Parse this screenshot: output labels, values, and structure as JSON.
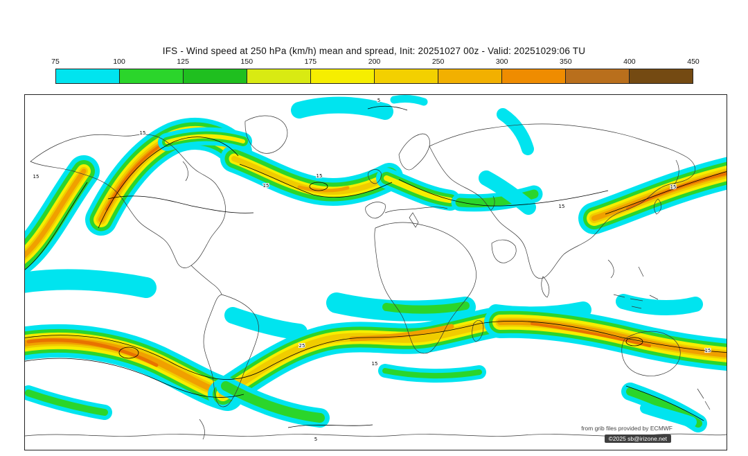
{
  "title": "IFS - Wind speed at 250 hPa (km/h) mean and spread, Init: 20251027 00z - Valid: 20251029:06 TU",
  "colorbar": {
    "ticks": [
      "75",
      "100",
      "125",
      "150",
      "175",
      "200",
      "250",
      "300",
      "350",
      "400",
      "450"
    ],
    "colors": [
      "#00e4ef",
      "#2bd52b",
      "#1fbf1f",
      "#d9ea12",
      "#f6ee00",
      "#f3d000",
      "#f2b000",
      "#ef8c00",
      "#b96f1c",
      "#744a12"
    ]
  },
  "map": {
    "palette": {
      "cyan": "#00e4ef",
      "green": "#2bd52b",
      "yellow": "#f6ee00",
      "gold": "#f0cc00",
      "orange": "#f0a000",
      "core": "#e87200"
    },
    "contour_labels": [
      "15",
      "15",
      "5",
      "15",
      "15",
      "15",
      "15",
      "25",
      "15",
      "15",
      "5"
    ],
    "attribution": {
      "line1": "from grib files provided by ECMWF",
      "line2": "©2025 sb@irizone.net"
    }
  },
  "chart_data": {
    "type": "heatmap",
    "title": "IFS - Wind speed at 250 hPa (km/h) mean and spread, Init: 20251027 00z - Valid: 20251029:06 TU",
    "variable": "250 hPa wind speed ensemble mean (shaded, km/h) with ensemble spread (black contours)",
    "projection": "global equirectangular world map",
    "colorbar_levels": [
      75,
      100,
      125,
      150,
      175,
      200,
      250,
      300,
      350,
      400,
      450
    ],
    "colorbar_colors": [
      "#00e4ef",
      "#2bd52b",
      "#1fbf1f",
      "#d9ea12",
      "#f6ee00",
      "#f3d000",
      "#f2b000",
      "#ef8c00",
      "#b96f1c",
      "#744a12"
    ],
    "spread_contour_values_shown": [
      5,
      15,
      25
    ],
    "features": [
      "Strong northern-hemisphere jet streak over the NE Pacific and western North America, core 250-350 km/h",
      "Jet band continuing across the North Atlantic toward Europe, core 150-250 km/h",
      "Strong jet streak over East Asia / NW Pacific at right edge, core 250-350 km/h",
      "Weak cyan patches (75-100 km/h) over the Arctic and scattered through the tropics",
      "Continuous strong southern-hemisphere polar jet circling 40-60S with several 250-350 km/h cores",
      "Spread contours labelled 5, 15 and 25 ringing the jet cores"
    ]
  }
}
